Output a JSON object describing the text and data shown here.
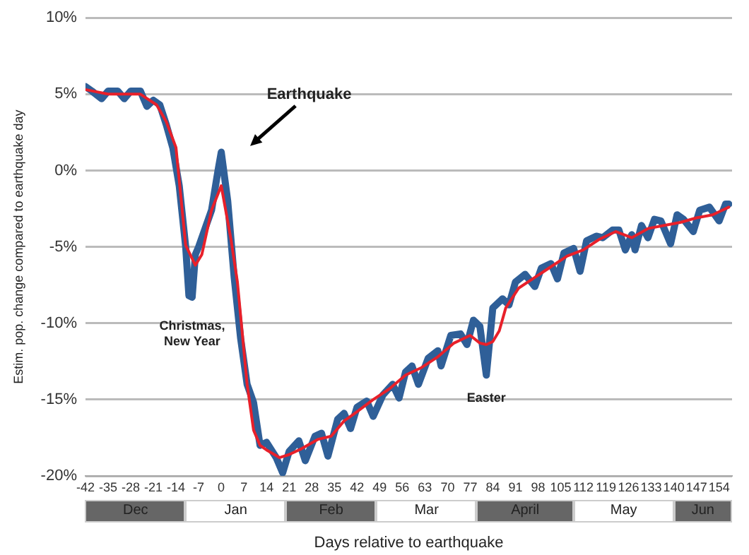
{
  "chart_data": {
    "type": "line",
    "xlabel": "Days relative to earthquake",
    "ylabel": "Estim. pop. change compared to earthquake day",
    "xlim": [
      -42,
      158
    ],
    "xticks": [
      -42,
      -35,
      -28,
      -21,
      -14,
      -7,
      0,
      7,
      14,
      21,
      28,
      35,
      42,
      49,
      56,
      63,
      70,
      77,
      84,
      91,
      98,
      105,
      112,
      119,
      126,
      133,
      140,
      147,
      154
    ],
    "ylim": [
      -20,
      10
    ],
    "yticks": [
      {
        "value": -20,
        "label": "-20%"
      },
      {
        "value": -15,
        "label": "-15%"
      },
      {
        "value": -10,
        "label": "-10%"
      },
      {
        "value": -5,
        "label": "-5%"
      },
      {
        "value": 0,
        "label": "0%"
      },
      {
        "value": 5,
        "label": "5%"
      },
      {
        "value": 10,
        "label": "10%"
      }
    ],
    "grid": "y",
    "marker": "none",
    "line_style": "solid",
    "series": [
      {
        "color": "#2f5f98",
        "x": [
          -42,
          -40,
          -37,
          -35,
          -32,
          -30,
          -28,
          -25,
          -23,
          -21,
          -19,
          -17,
          -15,
          -13,
          -11,
          -10,
          -9,
          -8,
          -7,
          -5,
          -3,
          -1,
          0,
          2,
          4,
          6,
          8,
          10,
          12,
          14,
          17,
          19,
          21,
          24,
          26,
          29,
          31,
          33,
          36,
          38,
          40,
          42,
          45,
          47,
          50,
          53,
          55,
          57,
          59,
          61,
          64,
          67,
          68,
          71,
          74,
          76,
          78,
          80,
          82,
          84,
          87,
          89,
          91,
          94,
          97,
          99,
          102,
          104,
          106,
          109,
          111,
          113,
          116,
          118,
          121,
          123,
          125,
          127,
          128,
          130,
          132,
          134,
          136,
          139,
          141,
          143,
          146,
          148,
          151,
          154,
          156,
          157
        ],
        "values": [
          5.5,
          5.2,
          4.7,
          5.2,
          5.2,
          4.7,
          5.2,
          5.2,
          4.2,
          4.6,
          4.3,
          3.0,
          1.5,
          -1.0,
          -5.0,
          -8.2,
          -8.3,
          -5.5,
          -5.0,
          -3.8,
          -2.6,
          0.0,
          1.2,
          -2.0,
          -7.0,
          -11.0,
          -14.0,
          -15.2,
          -18.0,
          -17.8,
          -18.8,
          -19.8,
          -18.4,
          -17.7,
          -19.0,
          -17.4,
          -17.2,
          -18.7,
          -16.3,
          -15.9,
          -16.9,
          -15.5,
          -15.1,
          -16.1,
          -14.7,
          -14.0,
          -14.9,
          -13.2,
          -12.8,
          -14.0,
          -12.3,
          -11.8,
          -12.8,
          -10.8,
          -10.7,
          -11.4,
          -9.8,
          -10.2,
          -13.4,
          -9.0,
          -8.4,
          -8.8,
          -7.3,
          -6.8,
          -7.6,
          -6.4,
          -6.1,
          -7.1,
          -5.4,
          -5.1,
          -6.6,
          -4.6,
          -4.3,
          -4.4,
          -3.9,
          -3.9,
          -5.2,
          -4.2,
          -5.2,
          -3.6,
          -4.4,
          -3.2,
          -3.3,
          -4.8,
          -2.9,
          -3.2,
          -4.0,
          -2.6,
          -2.4,
          -3.3,
          -2.2,
          -2.2
        ]
      },
      {
        "color": "#e8202a",
        "x": [
          -42,
          -35,
          -25,
          -20,
          -17,
          -14,
          -11,
          -8,
          -6,
          -3,
          0,
          3,
          5,
          8,
          10,
          12,
          14,
          18,
          21,
          25,
          30,
          34,
          38,
          42,
          47,
          52,
          57,
          62,
          67,
          72,
          77,
          80,
          82,
          84,
          86,
          88,
          92,
          97,
          102,
          107,
          112,
          117,
          122,
          127,
          132,
          137,
          142,
          147,
          152,
          157
        ],
        "values": [
          5.3,
          5.0,
          5.0,
          4.3,
          3.2,
          1.5,
          -4.9,
          -6.2,
          -5.5,
          -2.6,
          -1.0,
          -4.5,
          -7.3,
          -14.0,
          -17.0,
          -18.0,
          -18.3,
          -18.8,
          -18.6,
          -18.2,
          -17.6,
          -17.4,
          -16.4,
          -15.8,
          -15.0,
          -14.3,
          -13.4,
          -12.9,
          -12.2,
          -11.3,
          -10.8,
          -11.3,
          -11.4,
          -11.2,
          -10.5,
          -9.0,
          -7.7,
          -7.0,
          -6.3,
          -5.6,
          -5.2,
          -4.5,
          -4.0,
          -4.4,
          -3.8,
          -3.6,
          -3.4,
          -3.1,
          -2.9,
          -2.4
        ]
      }
    ],
    "annotations": [
      "Earthquake",
      {
        "text": "Christmas,\nNew Year",
        "x": -9,
        "y": -8.3
      },
      {
        "text": "Easter",
        "x": 82,
        "y": -13.4
      },
      "Dec",
      "Jan",
      "Feb",
      "Mar",
      "April",
      "May",
      "Jun"
    ]
  }
}
